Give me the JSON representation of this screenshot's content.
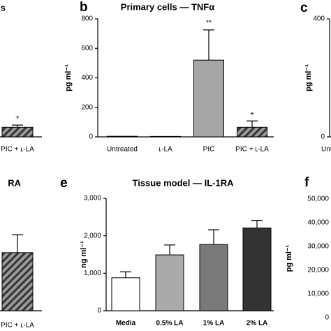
{
  "chart_data": [
    {
      "type": "bar",
      "title": "s",
      "categories": [
        "PIC + ʟ-LA"
      ],
      "values": [
        65
      ],
      "errors": [
        15
      ],
      "colors": [
        "#9a9a9a"
      ],
      "hatch": [
        true
      ],
      "bar_labels": [
        "+"
      ],
      "ylim": [
        0,
        800
      ]
    },
    {
      "type": "bar",
      "panel": "b",
      "title": "Primary cells — TNFα",
      "y_label": "pg ml⁻¹",
      "categories": [
        "Untreated",
        "ʟ-LA",
        "PIC",
        "PIC + ʟ-LA"
      ],
      "values": [
        4,
        3,
        520,
        65
      ],
      "errors": [
        0,
        0,
        205,
        43
      ],
      "colors": [
        "#ffffff",
        "#ffffff",
        "#a6a6a6",
        "#9a9a9a"
      ],
      "hatch": [
        false,
        false,
        false,
        true
      ],
      "bar_labels": [
        null,
        null,
        "**",
        "+"
      ],
      "ylim": [
        0,
        800
      ],
      "yticks": [
        0,
        200,
        400,
        600,
        800
      ]
    },
    {
      "type": "bar",
      "panel": "c",
      "y_label": "pg ml⁻¹",
      "categories": [
        "Untreated"
      ],
      "values": [
        null
      ],
      "ylim": [
        0,
        400
      ],
      "yticks": [
        0,
        400
      ]
    },
    {
      "type": "bar",
      "title": "RA",
      "categories": [
        "PIC + ʟ-LA"
      ],
      "values": [
        1550
      ],
      "errors": [
        480
      ],
      "colors": [
        "#9a9a9a"
      ],
      "hatch": [
        true
      ],
      "ylim": [
        0,
        3000
      ]
    },
    {
      "type": "bar",
      "panel": "e",
      "title": "Tissue model — IL-1RA",
      "y_label": "ng ml⁻¹",
      "categories": [
        "Media",
        "0.5% LA",
        "1% LA",
        "2% LA"
      ],
      "values": [
        880,
        1490,
        1770,
        2210
      ],
      "errors": [
        160,
        265,
        390,
        200
      ],
      "colors": [
        "#ffffff",
        "#aaaaaa",
        "#7a7a7a",
        "#333333"
      ],
      "hatch": [
        false,
        false,
        false,
        false
      ],
      "ylim": [
        0,
        3000
      ],
      "yticks": [
        0,
        {
          "value": 1000,
          "label": "1,000"
        },
        {
          "value": 2000,
          "label": "2,000"
        },
        {
          "value": 3000,
          "label": "3,000"
        }
      ]
    },
    {
      "type": "bar",
      "panel": "f",
      "y_label": "pg ml⁻¹",
      "ylim": [
        0,
        50000
      ],
      "yticks": [
        0,
        {
          "value": 10000,
          "label": "10,000"
        },
        {
          "value": 20000,
          "label": "20,000"
        },
        {
          "value": 30000,
          "label": "30,000"
        },
        {
          "value": 40000,
          "label": "40,000"
        },
        {
          "value": 50000,
          "label": "50,000"
        }
      ]
    }
  ]
}
